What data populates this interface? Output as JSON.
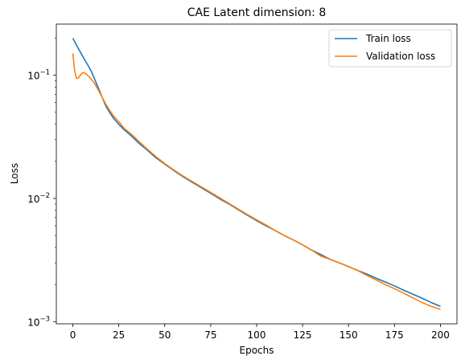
{
  "chart_data": {
    "type": "line",
    "title": "CAE Latent dimension: 8",
    "xlabel": "Epochs",
    "ylabel": "Loss",
    "xlim": [
      -9,
      209
    ],
    "ylim": [
      0.00096,
      0.26
    ],
    "yscale": "log",
    "grid": false,
    "legend_position": "top-right",
    "x_ticks": [
      0,
      25,
      50,
      75,
      100,
      125,
      150,
      175,
      200
    ],
    "x_tick_labels": [
      "0",
      "25",
      "50",
      "75",
      "100",
      "125",
      "150",
      "175",
      "200"
    ],
    "y_ticks": [
      0.001,
      0.01,
      0.1
    ],
    "y_tick_labels": [
      {
        "base": "10",
        "exp": "−3"
      },
      {
        "base": "10",
        "exp": "−2"
      },
      {
        "base": "10",
        "exp": "−1"
      }
    ],
    "series": [
      {
        "name": "Train loss",
        "color": "#1f77b4",
        "x": [
          0,
          2,
          4,
          6,
          8,
          10,
          12,
          14,
          16,
          18,
          20,
          22,
          25,
          28,
          30,
          33,
          36,
          40,
          45,
          50,
          55,
          60,
          65,
          70,
          75,
          80,
          85,
          90,
          95,
          100,
          105,
          110,
          115,
          120,
          125,
          130,
          135,
          140,
          145,
          150,
          155,
          160,
          165,
          170,
          175,
          180,
          185,
          190,
          195,
          200
        ],
        "y": [
          0.2,
          0.175,
          0.155,
          0.137,
          0.122,
          0.108,
          0.092,
          0.078,
          0.066,
          0.056,
          0.05,
          0.045,
          0.04,
          0.036,
          0.034,
          0.031,
          0.028,
          0.025,
          0.0215,
          0.019,
          0.0168,
          0.015,
          0.0135,
          0.0122,
          0.011,
          0.0099,
          0.009,
          0.0081,
          0.0073,
          0.0066,
          0.006,
          0.0055,
          0.005,
          0.0046,
          0.0042,
          0.0038,
          0.0035,
          0.0032,
          0.003,
          0.0028,
          0.0026,
          0.00243,
          0.00225,
          0.0021,
          0.00195,
          0.0018,
          0.00167,
          0.00155,
          0.00143,
          0.00133
        ]
      },
      {
        "name": "Validation loss",
        "color": "#ff7f0e",
        "x": [
          0,
          1,
          2,
          3,
          4,
          5,
          6,
          7,
          8,
          10,
          12,
          14,
          16,
          18,
          20,
          22,
          25,
          28,
          30,
          33,
          36,
          40,
          45,
          50,
          55,
          60,
          65,
          70,
          75,
          80,
          85,
          90,
          95,
          100,
          105,
          110,
          115,
          120,
          125,
          130,
          135,
          140,
          145,
          150,
          155,
          160,
          165,
          170,
          175,
          180,
          185,
          190,
          195,
          200
        ],
        "y": [
          0.15,
          0.108,
          0.094,
          0.095,
          0.1,
          0.104,
          0.105,
          0.103,
          0.1,
          0.093,
          0.085,
          0.075,
          0.066,
          0.058,
          0.052,
          0.047,
          0.042,
          0.037,
          0.035,
          0.032,
          0.029,
          0.0255,
          0.022,
          0.0192,
          0.017,
          0.0152,
          0.0137,
          0.0124,
          0.0112,
          0.0101,
          0.0091,
          0.0082,
          0.0074,
          0.0067,
          0.0061,
          0.0055,
          0.005,
          0.0046,
          0.0042,
          0.0038,
          0.0034,
          0.0032,
          0.003,
          0.0028,
          0.0026,
          0.00237,
          0.00218,
          0.002,
          0.00185,
          0.0017,
          0.00156,
          0.00143,
          0.00133,
          0.00126
        ]
      }
    ]
  }
}
